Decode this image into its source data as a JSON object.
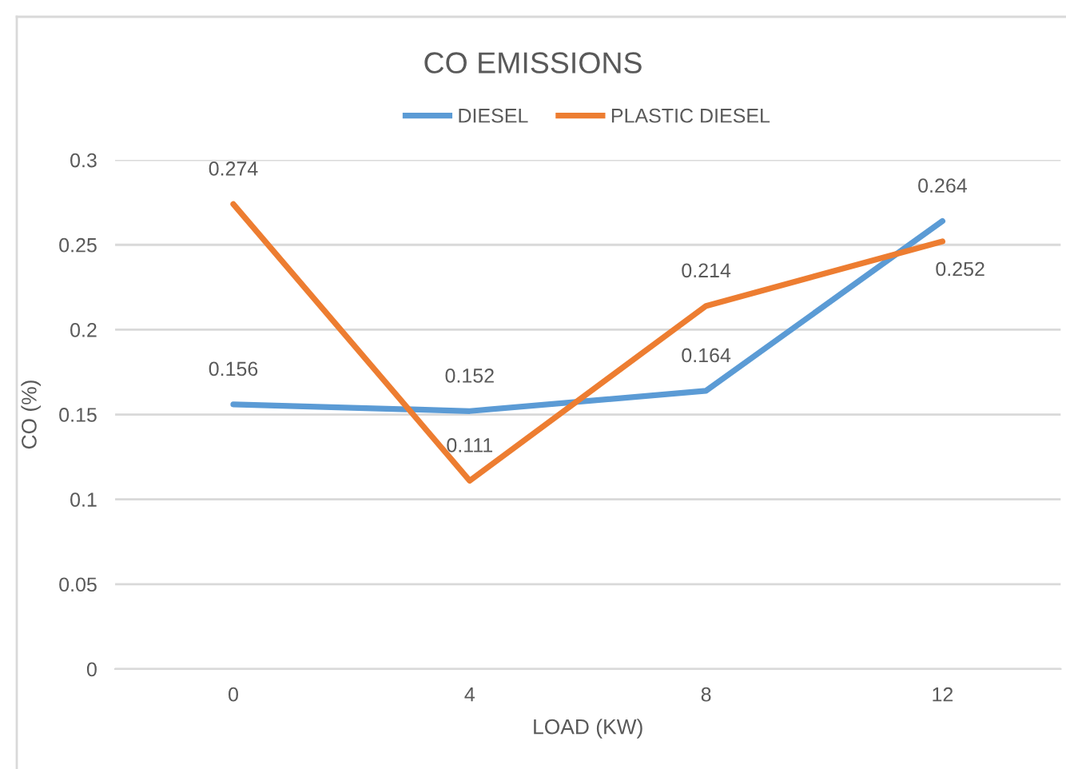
{
  "chart_data": {
    "type": "line",
    "title": "CO EMISSIONS",
    "xlabel": "LOAD (KW)",
    "ylabel": "CO (%)",
    "categories": [
      "0",
      "4",
      "8",
      "12"
    ],
    "series": [
      {
        "name": "DIESEL",
        "color": "#5b9bd5",
        "values": [
          0.156,
          0.152,
          0.164,
          0.264
        ]
      },
      {
        "name": "PLASTIC DIESEL",
        "color": "#ed7d31",
        "values": [
          0.274,
          0.111,
          0.214,
          0.252
        ]
      }
    ],
    "ylim": [
      0,
      0.3
    ],
    "yticks": [
      0,
      0.05,
      0.1,
      0.15,
      0.2,
      0.25,
      0.3
    ],
    "grid": "y",
    "legend": "top",
    "data_labels": true,
    "marker": "none",
    "line_style": "solid"
  }
}
